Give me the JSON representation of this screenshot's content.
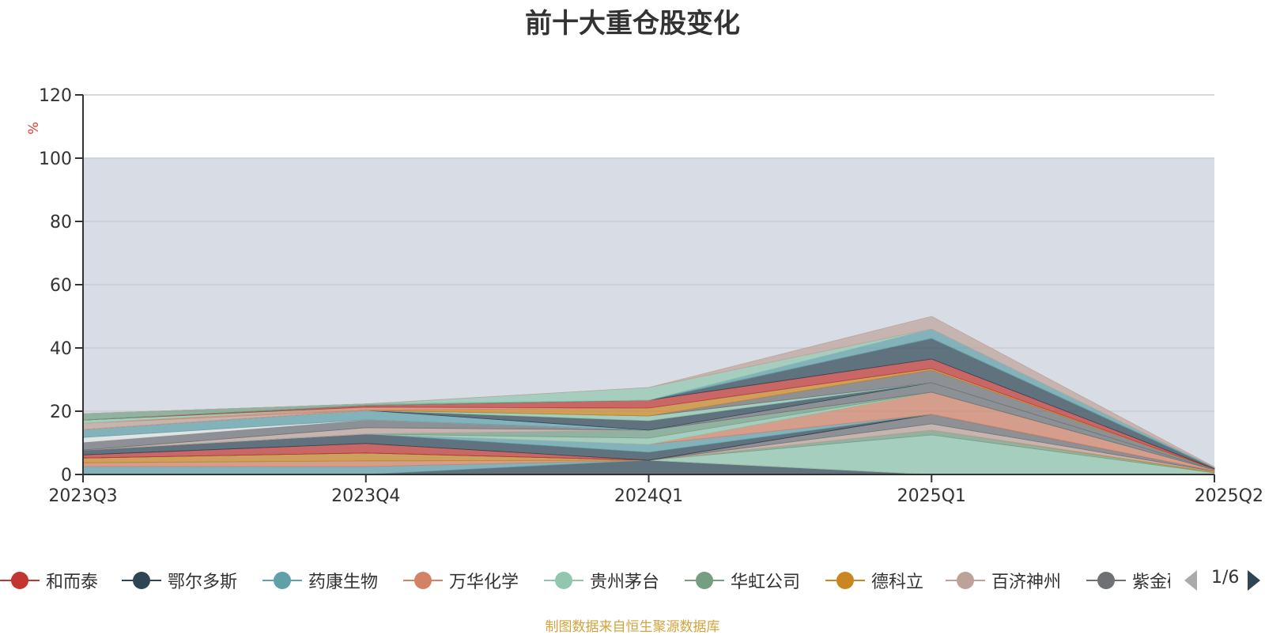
{
  "chart_data": {
    "type": "area",
    "title": "前十大重仓股变化",
    "ylabel": "%",
    "categories": [
      "2023Q3",
      "2023Q4",
      "2024Q1",
      "2025Q1",
      "2025Q2"
    ],
    "ylim": [
      0,
      120
    ],
    "yticks": [
      0,
      20,
      40,
      60,
      80,
      100,
      120
    ],
    "grid": true,
    "background_band": [
      0,
      100
    ],
    "stacked": true,
    "series": [
      {
        "name": "和而泰",
        "color": "#c23531",
        "values": [
          0.0,
          0.0,
          0.0,
          0.0,
          0.0
        ]
      },
      {
        "name": "鄂尔多斯",
        "color": "#2f4554",
        "values": [
          0.0,
          0.0,
          4.5,
          0.0,
          0.0
        ]
      },
      {
        "name": "药康生物",
        "color": "#61a0a8",
        "values": [
          2.5,
          2.5,
          0.0,
          0.0,
          0.0
        ]
      },
      {
        "name": "万华化学",
        "color": "#d48265",
        "values": [
          1.2,
          1.8,
          0.0,
          0.0,
          0.0
        ]
      },
      {
        "name": "贵州茅台",
        "color": "#91c7ae",
        "values": [
          0.0,
          0.0,
          0.0,
          12.5,
          0.5
        ]
      },
      {
        "name": "华虹公司",
        "color": "#749f83",
        "values": [
          0.0,
          0.0,
          0.0,
          1.5,
          0.1
        ]
      },
      {
        "name": "德科立",
        "color": "#ca8622",
        "values": [
          1.5,
          2.5,
          0.0,
          0.0,
          0.3
        ]
      },
      {
        "name": "百济神州",
        "color": "#bda29a",
        "values": [
          0.0,
          0.0,
          0.0,
          2.0,
          0.1
        ]
      },
      {
        "name": "紫金矿业",
        "color": "#6e7074",
        "values": [
          0.0,
          0.0,
          0.0,
          3.0,
          0.1
        ]
      },
      {
        "name": "",
        "color": "#546570",
        "values": [
          0.0,
          0.0,
          0.0,
          0.0,
          0.0
        ]
      },
      {
        "name": "",
        "color": "#c23531",
        "values": [
          1.0,
          3.0,
          0.0,
          0.0,
          0.0
        ]
      },
      {
        "name": "",
        "color": "#2f4554",
        "values": [
          1.5,
          3.0,
          2.5,
          0.0,
          0.0
        ]
      },
      {
        "name": "",
        "color": "#61a0a8",
        "values": [
          0.0,
          0.0,
          2.5,
          0.0,
          0.0
        ]
      },
      {
        "name": "",
        "color": "#d48265",
        "values": [
          0.0,
          0.0,
          0.0,
          7.0,
          0.3
        ]
      },
      {
        "name": "",
        "color": "#91c7ae",
        "values": [
          0.0,
          0.0,
          2.0,
          0.0,
          0.0
        ]
      },
      {
        "name": "",
        "color": "#749f83",
        "values": [
          0.0,
          0.0,
          2.5,
          0.0,
          0.0
        ]
      },
      {
        "name": "",
        "color": "#bda29a",
        "values": [
          0.0,
          2.0,
          0.0,
          0.0,
          0.0
        ]
      },
      {
        "name": "",
        "color": "#6e7074",
        "values": [
          2.5,
          2.5,
          0.0,
          3.0,
          0.1
        ]
      },
      {
        "name": "",
        "color": "#e6e6e6",
        "values": [
          1.5,
          0.0,
          0.0,
          0.0,
          0.0
        ]
      },
      {
        "name": "",
        "color": "#61a0a8",
        "values": [
          2.5,
          3.0,
          0.0,
          0.0,
          0.0
        ]
      },
      {
        "name": "",
        "color": "#2f4554",
        "values": [
          0.0,
          0.0,
          3.0,
          0.0,
          0.0
        ]
      },
      {
        "name": "",
        "color": "#91c7ae",
        "values": [
          0.0,
          0.0,
          1.5,
          0.0,
          0.0
        ]
      },
      {
        "name": "",
        "color": "#6e7074",
        "values": [
          0.0,
          0.0,
          0.0,
          4.0,
          0.1
        ]
      },
      {
        "name": "",
        "color": "#ca8622",
        "values": [
          0.0,
          0.0,
          2.5,
          0.5,
          0.1
        ]
      },
      {
        "name": "",
        "color": "#bda29a",
        "values": [
          2.0,
          0.0,
          0.0,
          0.0,
          0.0
        ]
      },
      {
        "name": "",
        "color": "#d48265",
        "values": [
          0.0,
          1.0,
          0.0,
          0.0,
          0.0
        ]
      },
      {
        "name": "",
        "color": "#91c7ae",
        "values": [
          1.0,
          0.0,
          0.0,
          0.0,
          0.0
        ]
      },
      {
        "name": "",
        "color": "#c23531",
        "values": [
          0.0,
          0.5,
          2.5,
          3.0,
          0.1
        ]
      },
      {
        "name": "",
        "color": "#2f4554",
        "values": [
          0.0,
          0.0,
          0.0,
          6.5,
          0.3
        ]
      },
      {
        "name": "",
        "color": "#749f83",
        "values": [
          2.0,
          0.5,
          0.0,
          0.0,
          0.0
        ]
      },
      {
        "name": "",
        "color": "#61a0a8",
        "values": [
          0.0,
          0.0,
          0.0,
          3.0,
          0.1
        ]
      },
      {
        "name": "",
        "color": "#91c7ae",
        "values": [
          0.0,
          0.0,
          4.0,
          0.0,
          0.0
        ]
      },
      {
        "name": "",
        "color": "#bda29a",
        "values": [
          0.0,
          0.0,
          0.0,
          4.0,
          0.2
        ]
      }
    ]
  },
  "legend": {
    "items": [
      {
        "label": "和而泰",
        "color": "#c23531"
      },
      {
        "label": "鄂尔多斯",
        "color": "#2f4554"
      },
      {
        "label": "药康生物",
        "color": "#61a0a8"
      },
      {
        "label": "万华化学",
        "color": "#d48265"
      },
      {
        "label": "贵州茅台",
        "color": "#91c7ae"
      },
      {
        "label": "华虹公司",
        "color": "#749f83"
      },
      {
        "label": "德科立",
        "color": "#ca8622"
      },
      {
        "label": "百济神州",
        "color": "#bda29a"
      },
      {
        "label": "紫金矿业",
        "color": "#6e7074"
      }
    ],
    "page": "1/6"
  },
  "footer": {
    "source_note": "制图数据来自恒生聚源数据库"
  }
}
